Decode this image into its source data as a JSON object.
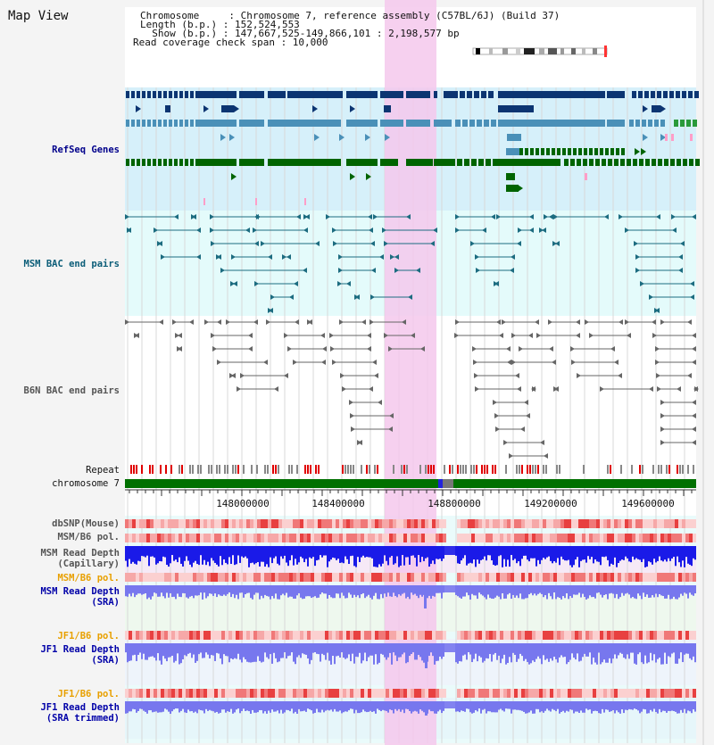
{
  "title": "Map View",
  "info": {
    "line1": "Chromosome     : Chromosome 7, reference assembly (C57BL/6J) (Build 37)",
    "line2": "Length (b.p.) : 152,524,553",
    "line3": "  Show (b.p.) : 147,667,525-149,866,101 : 2,198,577 bp",
    "line4": "Read coverage check span : 10,000"
  },
  "tracks": {
    "refseq": "RefSeq Genes",
    "msm_bac": "MSM BAC end pairs",
    "b6n_bac": "B6N BAC end pairs",
    "repeat": "Repeat",
    "chromosome": "chromosome 7",
    "dbsnp": "dbSNP(Mouse)",
    "msm_pol": "MSM/B6 pol.",
    "msm_depth_cap_1": "MSM Read Depth",
    "msm_depth_cap_2": "(Capillary)",
    "msm_pol_sra": "MSM/B6 pol.",
    "msm_depth_sra_1": "MSM Read Depth",
    "msm_depth_sra_2": "(SRA)",
    "jf1_pol": "JF1/B6 pol.",
    "jf1_depth_1": "JF1 Read Depth",
    "jf1_depth_2": "(SRA)",
    "jf1_pol_2": "JF1/B6 pol.",
    "jf1_trim_1": "JF1 Read Depth",
    "jf1_trim_2": "(SRA trimmed)"
  },
  "axis": {
    "ticks": [
      "148000000",
      "148400000",
      "148800000",
      "149200000",
      "149600000"
    ]
  },
  "colors": {
    "highlight": "#f5c8ec",
    "refseq_bg": "#d6f0fa",
    "msm_bg": "#e4fbfb",
    "navy": "#0c3572",
    "steel": "#4a90b8",
    "green": "#006400",
    "teal": "#1c6c80",
    "gray": "#666666",
    "repeat_red": "#e00000",
    "chrom_green": "#007000",
    "depth_blue": "#1a1ae8",
    "sra_blue": "#7777ee"
  }
}
